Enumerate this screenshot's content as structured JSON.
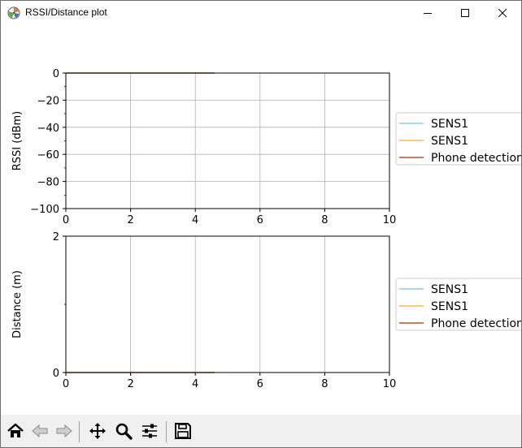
{
  "window": {
    "title": "RSSI/Distance plot"
  },
  "chart_data": [
    {
      "type": "line",
      "xlabel": "",
      "ylabel": "RSSI (dBm)",
      "xlim": [
        0,
        10
      ],
      "ylim": [
        -100,
        0
      ],
      "xticks": [
        0,
        2,
        4,
        6,
        8,
        10
      ],
      "yticks": [
        0,
        -20,
        -40,
        -60,
        -80,
        -100
      ],
      "xtick_labels": [
        "0",
        "2",
        "4",
        "6",
        "8",
        "10"
      ],
      "ytick_labels": [
        "0",
        "−20",
        "−40",
        "−60",
        "−80",
        "−100"
      ],
      "grid": true,
      "legend_position": "right, outside",
      "series": [
        {
          "name": "SENS1",
          "color": "#8ecae6",
          "x": [],
          "y": []
        },
        {
          "name": "SENS1",
          "color": "#ffb74d",
          "x": [],
          "y": []
        },
        {
          "name": "Phone detection",
          "color": "#b5542b",
          "x": [
            0,
            4.6
          ],
          "y": [
            0,
            0
          ]
        }
      ]
    },
    {
      "type": "line",
      "xlabel": "",
      "ylabel": "Distance (m)",
      "xlim": [
        0,
        10
      ],
      "ylim": [
        0,
        2
      ],
      "xticks": [
        0,
        2,
        4,
        6,
        8,
        10
      ],
      "yticks": [
        0,
        2
      ],
      "xtick_labels": [
        "0",
        "2",
        "4",
        "6",
        "8",
        "10"
      ],
      "ytick_labels": [
        "0",
        "2"
      ],
      "grid": true,
      "legend_position": "right, outside",
      "series": [
        {
          "name": "SENS1",
          "color": "#8ecae6",
          "x": [],
          "y": []
        },
        {
          "name": "SENS1",
          "color": "#ffb74d",
          "x": [],
          "y": []
        },
        {
          "name": "Phone detection",
          "color": "#b5542b",
          "x": [
            0,
            4.6
          ],
          "y": [
            0,
            0
          ]
        }
      ]
    }
  ],
  "toolbar": {
    "buttons": [
      {
        "icon": "home-icon"
      },
      {
        "icon": "back-arrow-icon"
      },
      {
        "icon": "forward-arrow-icon"
      },
      {
        "icon": "pan-move-icon"
      },
      {
        "icon": "zoom-magnifier-icon"
      },
      {
        "icon": "subplots-config-icon"
      },
      {
        "icon": "save-floppy-icon"
      }
    ]
  }
}
